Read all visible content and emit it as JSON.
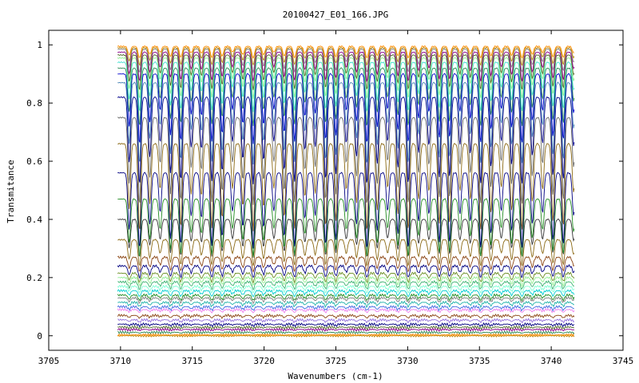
{
  "chart_data": {
    "type": "line",
    "title": "20100427_E01_166.JPG",
    "xlabel": "Wavenumbers (cm-1)",
    "ylabel": "Transmitance",
    "xlim": [
      3705,
      3745
    ],
    "ylim": [
      -0.05,
      1.05
    ],
    "x_ticks": [
      3705,
      3710,
      3715,
      3720,
      3725,
      3730,
      3735,
      3740,
      3745
    ],
    "y_ticks": [
      0,
      0.2,
      0.4,
      0.6,
      0.8,
      1
    ],
    "x_tick_labels": [
      "3705",
      "3710",
      "3715",
      "3720",
      "3725",
      "3730",
      "3735",
      "3740",
      "3745"
    ],
    "y_tick_labels": [
      "0",
      "0.2",
      "0.4",
      "0.6",
      "0.8",
      "1"
    ],
    "x_range": [
      3709.8,
      3741.6
    ],
    "grid": false,
    "legend": "none",
    "series": [
      {
        "color": "#b8860b",
        "baseline": 0.0,
        "depth": 0.0
      },
      {
        "color": "#ff8c00",
        "baseline": 0.003,
        "depth": 0.001
      },
      {
        "color": "#2e8b57",
        "baseline": 0.012,
        "depth": 0.003
      },
      {
        "color": "#8b008b",
        "baseline": 0.022,
        "depth": 0.004
      },
      {
        "color": "#556b2f",
        "baseline": 0.03,
        "depth": 0.005
      },
      {
        "color": "#000080",
        "baseline": 0.04,
        "depth": 0.006
      },
      {
        "color": "#9370db",
        "baseline": 0.055,
        "depth": 0.008
      },
      {
        "color": "#8b4513",
        "baseline": 0.07,
        "depth": 0.009
      },
      {
        "color": "#ee82ee",
        "baseline": 0.09,
        "depth": 0.01
      },
      {
        "color": "#4169e1",
        "baseline": 0.1,
        "depth": 0.012
      },
      {
        "color": "#20b2aa",
        "baseline": 0.115,
        "depth": 0.014
      },
      {
        "color": "#808080",
        "baseline": 0.13,
        "depth": 0.016
      },
      {
        "color": "#228b22",
        "baseline": 0.14,
        "depth": 0.018
      },
      {
        "color": "#00ced1",
        "baseline": 0.155,
        "depth": 0.02
      },
      {
        "color": "#7fffd4",
        "baseline": 0.17,
        "depth": 0.022
      },
      {
        "color": "#3cb371",
        "baseline": 0.185,
        "depth": 0.025
      },
      {
        "color": "#90ee90",
        "baseline": 0.2,
        "depth": 0.028
      },
      {
        "color": "#6b8e23",
        "baseline": 0.215,
        "depth": 0.03
      },
      {
        "color": "#000080",
        "baseline": 0.24,
        "depth": 0.04
      },
      {
        "color": "#8b4513",
        "baseline": 0.27,
        "depth": 0.05
      },
      {
        "color": "#8b6914",
        "baseline": 0.33,
        "depth": 0.09
      },
      {
        "color": "#333333",
        "baseline": 0.4,
        "depth": 0.13
      },
      {
        "color": "#228b22",
        "baseline": 0.47,
        "depth": 0.2
      },
      {
        "color": "#000080",
        "baseline": 0.56,
        "depth": 0.26
      },
      {
        "color": "#8b6914",
        "baseline": 0.66,
        "depth": 0.3
      },
      {
        "color": "#696969",
        "baseline": 0.75,
        "depth": 0.3
      },
      {
        "color": "#00008b",
        "baseline": 0.82,
        "depth": 0.3
      },
      {
        "color": "#4682b4",
        "baseline": 0.87,
        "depth": 0.28
      },
      {
        "color": "#0000cd",
        "baseline": 0.9,
        "depth": 0.24
      },
      {
        "color": "#2e8b57",
        "baseline": 0.92,
        "depth": 0.2
      },
      {
        "color": "#40e0d0",
        "baseline": 0.94,
        "depth": 0.17
      },
      {
        "color": "#90ee90",
        "baseline": 0.955,
        "depth": 0.14
      },
      {
        "color": "#556b2f",
        "baseline": 0.965,
        "depth": 0.12
      },
      {
        "color": "#8b008b",
        "baseline": 0.975,
        "depth": 0.1
      },
      {
        "color": "#808080",
        "baseline": 0.985,
        "depth": 0.08
      },
      {
        "color": "#b8860b",
        "baseline": 0.99,
        "depth": 0.06
      },
      {
        "color": "#ff8c00",
        "baseline": 0.995,
        "depth": 0.04
      }
    ]
  }
}
